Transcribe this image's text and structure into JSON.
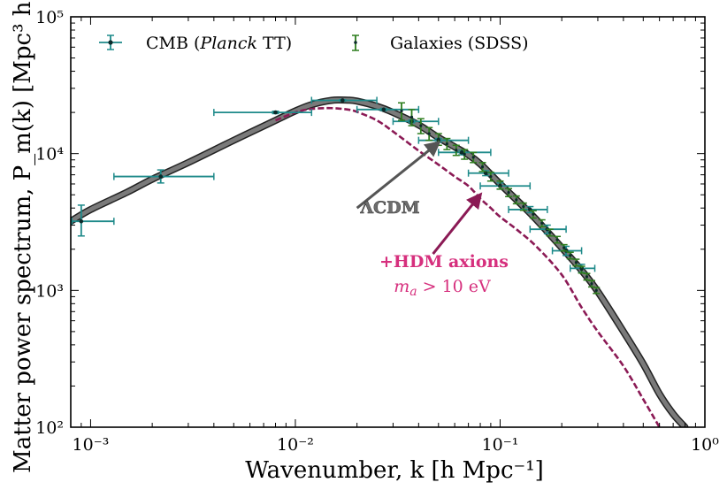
{
  "chart_data": {
    "type": "line",
    "xlabel": "Wavenumber, k [h Mpc⁻¹]",
    "ylabel": "Matter power spectrum, P_m(k) [Mpc³ h⁻³]",
    "x_scale": "log",
    "y_scale": "log",
    "xlim": [
      0.0008,
      1.0
    ],
    "ylim": [
      100,
      100000
    ],
    "x_ticks": [
      {
        "value": 0.001,
        "label": "10⁻³"
      },
      {
        "value": 0.01,
        "label": "10⁻²"
      },
      {
        "value": 0.1,
        "label": "10⁻¹"
      },
      {
        "value": 1,
        "label": "10⁰"
      }
    ],
    "y_ticks": [
      {
        "value": 100,
        "label": "10²"
      },
      {
        "value": 1000,
        "label": "10³"
      },
      {
        "value": 10000,
        "label": "10⁴"
      },
      {
        "value": 100000,
        "label": "10⁵"
      }
    ],
    "grid": false,
    "legend_position": "top",
    "colors": {
      "cmb": "#1e8a8a",
      "galaxies": "#2e7d1e",
      "lcdm": "#7a7a7a",
      "hdm": "#8b1a55",
      "hdm_text": "#d62f7d"
    },
    "series": [
      {
        "name": "ΛCDM",
        "style": "thick-gray-line",
        "x": [
          0.0008,
          0.001,
          0.0015,
          0.002,
          0.003,
          0.005,
          0.008,
          0.01,
          0.012,
          0.015,
          0.018,
          0.02,
          0.025,
          0.03,
          0.04,
          0.05,
          0.06,
          0.07,
          0.08,
          0.1,
          0.13,
          0.15,
          0.2,
          0.25,
          0.3,
          0.4,
          0.5,
          0.6,
          0.7,
          0.8
        ],
        "y": [
          3200,
          3900,
          5200,
          6500,
          8600,
          12500,
          17500,
          20500,
          22800,
          24500,
          24600,
          24200,
          22200,
          20000,
          16200,
          13100,
          11200,
          9800,
          8400,
          6000,
          4100,
          3300,
          2050,
          1400,
          980,
          500,
          290,
          175,
          125,
          100
        ]
      },
      {
        "name": "+HDM axions",
        "style": "dashed-line",
        "x": [
          0.008,
          0.01,
          0.012,
          0.015,
          0.018,
          0.02,
          0.025,
          0.03,
          0.04,
          0.05,
          0.06,
          0.07,
          0.08,
          0.09,
          0.1,
          0.12,
          0.15,
          0.2,
          0.25,
          0.3,
          0.4,
          0.5,
          0.6
        ],
        "y": [
          17500,
          20000,
          21200,
          21500,
          21000,
          20200,
          17500,
          14500,
          10500,
          8300,
          6800,
          5800,
          4700,
          4000,
          3450,
          2800,
          2100,
          1300,
          750,
          500,
          280,
          160,
          100
        ]
      },
      {
        "name": "CMB (Planck TT)",
        "style": "errorbar",
        "points": [
          {
            "x": 0.0009,
            "y": 3200,
            "xerr": [
              0.00081,
              0.0013
            ],
            "yerr": [
              2500,
              4200
            ]
          },
          {
            "x": 0.0022,
            "y": 6800,
            "xerr": [
              0.0013,
              0.004
            ],
            "yerr": [
              6100,
              7600
            ]
          },
          {
            "x": 0.008,
            "y": 20000,
            "xerr": [
              0.004,
              0.012
            ],
            "yerr": [
              19600,
              20400
            ]
          },
          {
            "x": 0.017,
            "y": 24500,
            "xerr": [
              0.012,
              0.025
            ],
            "yerr": [
              24200,
              24800
            ]
          },
          {
            "x": 0.027,
            "y": 21000,
            "xerr": [
              0.02,
              0.04
            ],
            "yerr": [
              20600,
              21400
            ]
          },
          {
            "x": 0.037,
            "y": 17200,
            "xerr": [
              0.03,
              0.05
            ],
            "yerr": [
              16800,
              17600
            ]
          },
          {
            "x": 0.05,
            "y": 12500,
            "xerr": [
              0.04,
              0.07
            ],
            "yerr": [
              12100,
              12900
            ]
          },
          {
            "x": 0.065,
            "y": 10200,
            "xerr": [
              0.05,
              0.09
            ],
            "yerr": [
              9800,
              10600
            ]
          },
          {
            "x": 0.085,
            "y": 7200,
            "xerr": [
              0.07,
              0.11
            ],
            "yerr": [
              6900,
              7500
            ]
          },
          {
            "x": 0.1,
            "y": 5800,
            "xerr": [
              0.08,
              0.14
            ],
            "yerr": [
              5500,
              6100
            ]
          },
          {
            "x": 0.14,
            "y": 3900,
            "xerr": [
              0.11,
              0.17
            ],
            "yerr": [
              3700,
              4100
            ]
          },
          {
            "x": 0.17,
            "y": 2800,
            "xerr": [
              0.14,
              0.21
            ],
            "yerr": [
              2600,
              3000
            ]
          },
          {
            "x": 0.21,
            "y": 1950,
            "xerr": [
              0.18,
              0.25
            ],
            "yerr": [
              1800,
              2100
            ]
          },
          {
            "x": 0.25,
            "y": 1450,
            "xerr": [
              0.22,
              0.29
            ],
            "yerr": [
              1350,
              1550
            ]
          }
        ]
      },
      {
        "name": "Galaxies (SDSS)",
        "style": "errorbar",
        "points": [
          {
            "x": 0.033,
            "y": 20500,
            "yerr": [
              17500,
              23500
            ]
          },
          {
            "x": 0.037,
            "y": 18500,
            "yerr": [
              16000,
              21000
            ]
          },
          {
            "x": 0.041,
            "y": 16000,
            "yerr": [
              14000,
              18000
            ]
          },
          {
            "x": 0.045,
            "y": 14000,
            "yerr": [
              12500,
              15500
            ]
          },
          {
            "x": 0.05,
            "y": 12800,
            "yerr": [
              11500,
              14000
            ]
          },
          {
            "x": 0.055,
            "y": 11800,
            "yerr": [
              10700,
              12900
            ]
          },
          {
            "x": 0.061,
            "y": 10600,
            "yerr": [
              9700,
              11500
            ]
          },
          {
            "x": 0.067,
            "y": 9900,
            "yerr": [
              9100,
              10700
            ]
          },
          {
            "x": 0.074,
            "y": 9400,
            "yerr": [
              8600,
              10200
            ]
          },
          {
            "x": 0.082,
            "y": 8000,
            "yerr": [
              7400,
              8600
            ]
          },
          {
            "x": 0.09,
            "y": 6800,
            "yerr": [
              6300,
              7300
            ]
          },
          {
            "x": 0.1,
            "y": 5900,
            "yerr": [
              5500,
              6300
            ]
          },
          {
            "x": 0.11,
            "y": 5200,
            "yerr": [
              4850,
              5550
            ]
          },
          {
            "x": 0.12,
            "y": 4600,
            "yerr": [
              4300,
              4900
            ]
          },
          {
            "x": 0.13,
            "y": 4100,
            "yerr": [
              3850,
              4350
            ]
          },
          {
            "x": 0.145,
            "y": 3600,
            "yerr": [
              3380,
              3820
            ]
          },
          {
            "x": 0.16,
            "y": 3100,
            "yerr": [
              2920,
              3280
            ]
          },
          {
            "x": 0.175,
            "y": 2650,
            "yerr": [
              2500,
              2800
            ]
          },
          {
            "x": 0.19,
            "y": 2350,
            "yerr": [
              2220,
              2480
            ]
          },
          {
            "x": 0.205,
            "y": 2050,
            "yerr": [
              1940,
              2160
            ]
          },
          {
            "x": 0.22,
            "y": 1800,
            "yerr": [
              1700,
              1900
            ]
          },
          {
            "x": 0.235,
            "y": 1600,
            "yerr": [
              1510,
              1690
            ]
          },
          {
            "x": 0.25,
            "y": 1420,
            "yerr": [
              1340,
              1500
            ]
          },
          {
            "x": 0.265,
            "y": 1260,
            "yerr": [
              1190,
              1330
            ]
          },
          {
            "x": 0.28,
            "y": 1120,
            "yerr": [
              1060,
              1180
            ]
          },
          {
            "x": 0.295,
            "y": 1000,
            "yerr": [
              950,
              1050
            ]
          }
        ]
      }
    ],
    "legend": [
      {
        "label_pre": "CMB (",
        "label_italic": "Planck",
        "label_post": " TT)",
        "series": "CMB (Planck TT)"
      },
      {
        "label": "Galaxies (SDSS)",
        "series": "Galaxies (SDSS)"
      }
    ],
    "annotations": {
      "lcdm_label": "ΛCDM",
      "lcdm_arrow": {
        "from": [
          0.02,
          4000
        ],
        "to": [
          0.05,
          12000
        ]
      },
      "hdm_label": "+HDM axions",
      "hdm_sub_var": "m",
      "hdm_sub_index": "a",
      "hdm_sub_rest": " > 10 eV",
      "hdm_arrow": {
        "from": [
          0.047,
          1850
        ],
        "to": [
          0.08,
          5000
        ]
      }
    }
  }
}
